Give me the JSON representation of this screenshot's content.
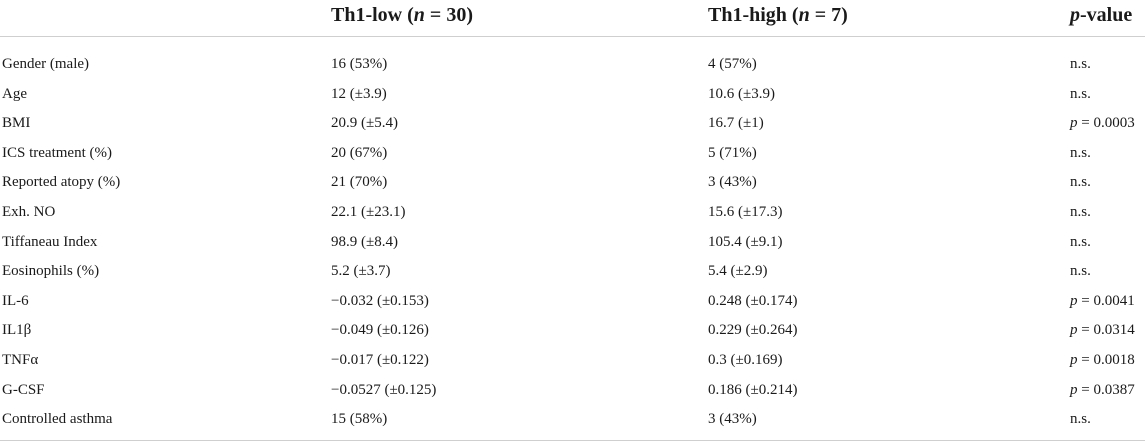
{
  "header": {
    "col0": "",
    "col1_prefix": "Th1-low (",
    "col1_n": "n",
    "col1_suffix": " = 30)",
    "col2_prefix": "Th1-high (",
    "col2_n": "n",
    "col2_suffix": " = 7)",
    "col3_p": "p",
    "col3_suffix": "-value"
  },
  "rows": [
    {
      "label": "Gender (male)",
      "low": "16 (53%)",
      "high": "4 (57%)",
      "p_prefix": "",
      "p_value": "n.s."
    },
    {
      "label": "Age",
      "low": "12 (±3.9)",
      "high": "10.6 (±3.9)",
      "p_prefix": "",
      "p_value": "n.s."
    },
    {
      "label": "BMI",
      "low": "20.9 (±5.4)",
      "high": "16.7 (±1)",
      "p_prefix": "p",
      "p_value": " = 0.0003"
    },
    {
      "label": "ICS treatment (%)",
      "low": "20 (67%)",
      "high": "5 (71%)",
      "p_prefix": "",
      "p_value": "n.s."
    },
    {
      "label": "Reported atopy (%)",
      "low": "21 (70%)",
      "high": "3 (43%)",
      "p_prefix": "",
      "p_value": "n.s."
    },
    {
      "label": "Exh. NO",
      "low": "22.1 (±23.1)",
      "high": "15.6 (±17.3)",
      "p_prefix": "",
      "p_value": "n.s."
    },
    {
      "label": "Tiffaneau Index",
      "low": "98.9 (±8.4)",
      "high": "105.4 (±9.1)",
      "p_prefix": "",
      "p_value": "n.s."
    },
    {
      "label": "Eosinophils (%)",
      "low": "5.2 (±3.7)",
      "high": "5.4 (±2.9)",
      "p_prefix": "",
      "p_value": "n.s."
    },
    {
      "label": "IL-6",
      "low": "−0.032 (±0.153)",
      "high": "0.248 (±0.174)",
      "p_prefix": "p",
      "p_value": " = 0.0041"
    },
    {
      "label": "IL1β",
      "low": "−0.049 (±0.126)",
      "high": "0.229 (±0.264)",
      "p_prefix": "p",
      "p_value": " = 0.0314"
    },
    {
      "label": "TNFα",
      "low": "−0.017 (±0.122)",
      "high": "0.3 (±0.169)",
      "p_prefix": "p",
      "p_value": " = 0.0018"
    },
    {
      "label": "G-CSF",
      "low": "−0.0527 (±0.125)",
      "high": "0.186 (±0.214)",
      "p_prefix": "p",
      "p_value": " = 0.0387"
    },
    {
      "label": "Controlled asthma",
      "low": "15 (58%)",
      "high": "3 (43%)",
      "p_prefix": "",
      "p_value": "n.s."
    }
  ]
}
